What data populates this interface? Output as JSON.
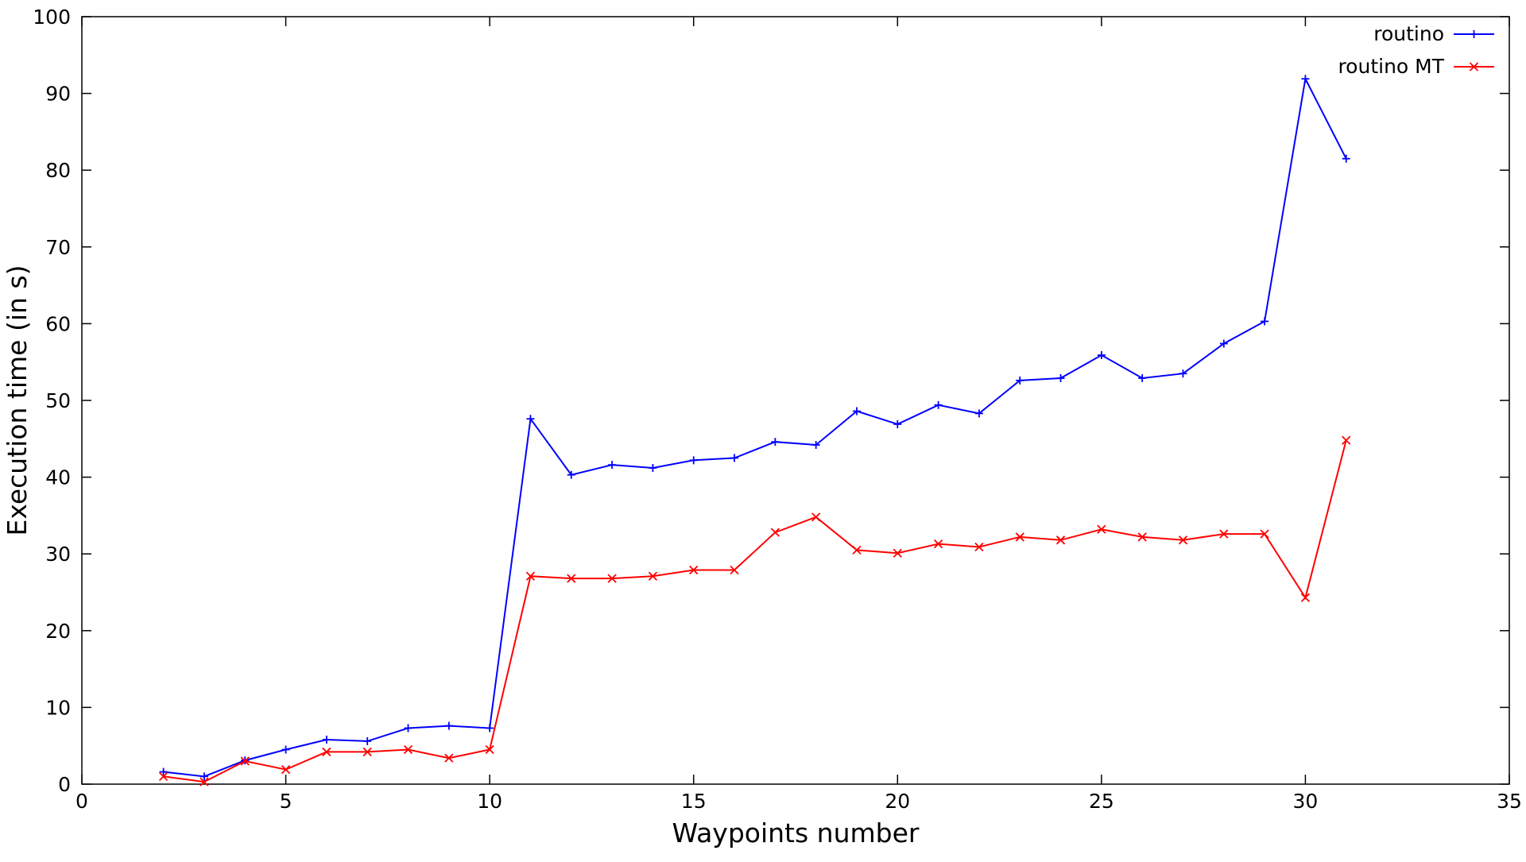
{
  "chart_data": {
    "type": "line",
    "title": "",
    "xlabel": "Waypoints number",
    "ylabel": "Execution time (in s)",
    "xlim": [
      0,
      35
    ],
    "ylim": [
      0,
      100
    ],
    "xticks": [
      0,
      5,
      10,
      15,
      20,
      25,
      30,
      35
    ],
    "yticks": [
      0,
      10,
      20,
      30,
      40,
      50,
      60,
      70,
      80,
      90,
      100
    ],
    "grid": false,
    "legend_position": "top-right",
    "x": [
      2,
      3,
      4,
      5,
      6,
      7,
      8,
      9,
      10,
      11,
      12,
      13,
      14,
      15,
      16,
      17,
      18,
      19,
      20,
      21,
      22,
      23,
      24,
      25,
      26,
      27,
      28,
      29,
      30,
      31
    ],
    "series": [
      {
        "name": "routino",
        "color": "#0000ff",
        "marker": "plus",
        "values": [
          1.6,
          1.0,
          3.1,
          4.5,
          5.8,
          5.6,
          7.3,
          7.6,
          7.3,
          47.6,
          40.3,
          41.6,
          41.2,
          42.2,
          42.5,
          44.6,
          44.2,
          48.6,
          46.9,
          49.4,
          48.3,
          52.6,
          52.9,
          55.9,
          52.9,
          53.5,
          57.4,
          60.3,
          91.9,
          81.5
        ]
      },
      {
        "name": "routino MT",
        "color": "#ff0000",
        "marker": "cross",
        "values": [
          1.0,
          0.3,
          3.0,
          1.9,
          4.2,
          4.2,
          4.5,
          3.4,
          4.5,
          27.1,
          26.8,
          26.8,
          27.1,
          27.9,
          27.9,
          32.8,
          34.8,
          30.5,
          30.1,
          31.3,
          30.9,
          32.2,
          31.8,
          33.2,
          32.2,
          31.8,
          32.6,
          32.6,
          24.3,
          44.8
        ]
      }
    ]
  }
}
